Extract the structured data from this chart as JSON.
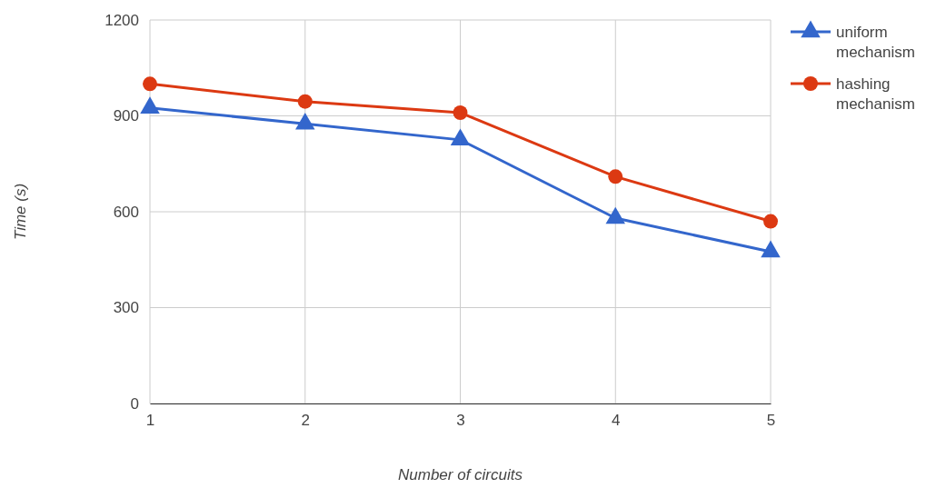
{
  "chart_data": {
    "type": "line",
    "xlabel": "Number of circuits",
    "ylabel": "Time (s)",
    "x": [
      1,
      2,
      3,
      4,
      5
    ],
    "xlim": [
      1,
      5
    ],
    "xticks": [
      1,
      2,
      3,
      4,
      5
    ],
    "ylim": [
      0,
      1200
    ],
    "yticks": [
      0,
      300,
      600,
      900,
      1200
    ],
    "grid": true,
    "legend": "top right",
    "line_style": "solid",
    "series": [
      {
        "name": "uniform mechanism",
        "color": "#3366cc",
        "marker": "triangle",
        "values": [
          925,
          875,
          825,
          580,
          475
        ]
      },
      {
        "name": "hashing mechanism",
        "color": "#dc3912",
        "marker": "circle",
        "values": [
          1000,
          945,
          910,
          710,
          570
        ]
      }
    ]
  }
}
